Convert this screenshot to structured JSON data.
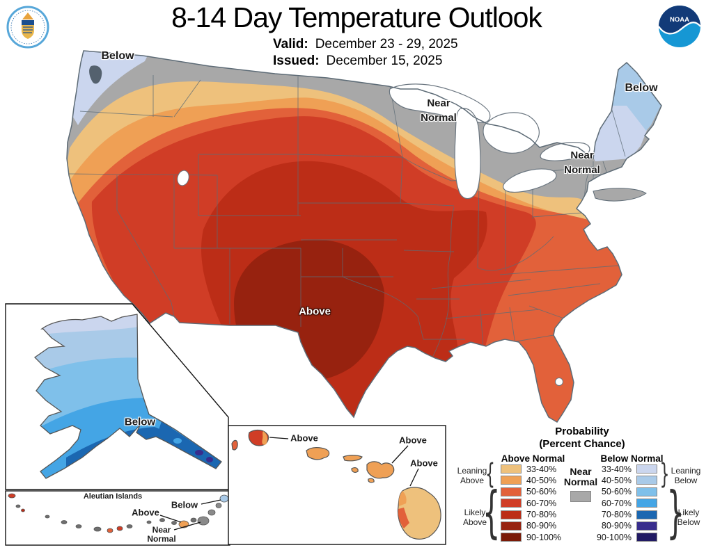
{
  "header": {
    "title": "8-14 Day Temperature Outlook",
    "valid_label": "Valid:",
    "valid_value": "December 23 - 29, 2025",
    "issued_label": "Issued:",
    "issued_value": "December 15, 2025"
  },
  "logos": {
    "commerce_seal": "U.S. Department of Commerce seal",
    "noaa_logo": "NOAA logo",
    "noaa_text": "NOAA"
  },
  "map_labels": {
    "nw_below": "Below",
    "midwest_near": [
      "Near",
      "Normal"
    ],
    "northeast_near": [
      "Near",
      "Normal"
    ],
    "maine_below": "Below",
    "center_above": "Above",
    "alaska_below": "Below",
    "hawaii_above_1": "Above",
    "hawaii_above_2": "Above",
    "hawaii_above_3": "Above",
    "aleutian_title": "Aleutian Islands",
    "aleutian_below": "Below",
    "aleutian_above": "Above",
    "aleutian_near": [
      "Near",
      "Normal"
    ]
  },
  "legend": {
    "title_line1": "Probability",
    "title_line2": "(Percent Chance)",
    "above_header": "Above Normal",
    "below_header": "Below Normal",
    "ranges": [
      "33-40%",
      "40-50%",
      "50-60%",
      "60-70%",
      "70-80%",
      "80-90%",
      "90-100%"
    ],
    "above_colors": [
      "#eec17c",
      "#efa055",
      "#e2613a",
      "#d03d26",
      "#bc2d17",
      "#97220f",
      "#7a1a08"
    ],
    "below_colors": [
      "#cbd6ee",
      "#a9cae8",
      "#7fc0ea",
      "#44a5e5",
      "#1b67b1",
      "#382d8d",
      "#211a63"
    ],
    "near_normal": [
      "Near",
      "Normal"
    ],
    "near_color": "#a8a8a8",
    "leaning_above": [
      "Leaning",
      "Above"
    ],
    "likely_above": [
      "Likely",
      "Above"
    ],
    "leaning_below": [
      "Leaning",
      "Below"
    ],
    "likely_below": [
      "Likely",
      "Below"
    ]
  }
}
